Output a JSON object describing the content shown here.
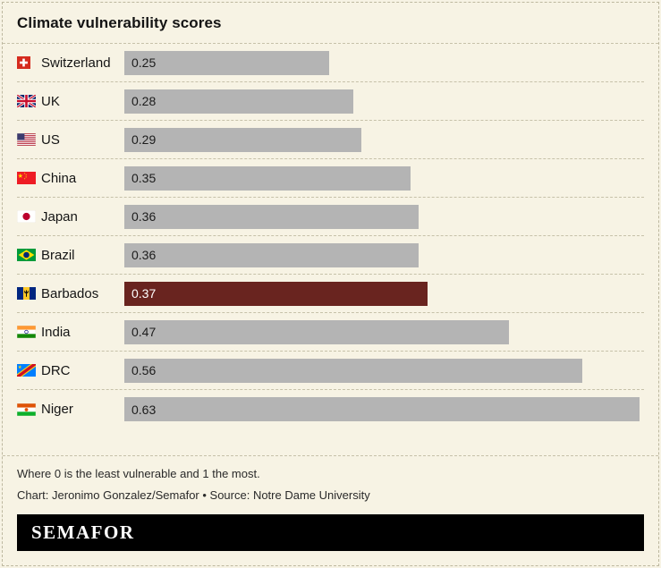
{
  "header": {
    "title": "Climate vulnerability scores"
  },
  "chart_data": {
    "type": "bar",
    "orientation": "horizontal",
    "title": "Climate vulnerability scores",
    "xlim": [
      0,
      0.635
    ],
    "grid": false,
    "legend": false,
    "bar_color": "#b4b4b4",
    "highlight_color": "#69241f",
    "bar_label_color": "#1c1c1c",
    "highlight_label_color": "#ffffff",
    "rows": [
      {
        "country": "Switzerland",
        "value": 0.25,
        "flag": "switzerland",
        "highlight": false
      },
      {
        "country": "UK",
        "value": 0.28,
        "flag": "uk",
        "highlight": false
      },
      {
        "country": "US",
        "value": 0.29,
        "flag": "us",
        "highlight": false
      },
      {
        "country": "China",
        "value": 0.35,
        "flag": "china",
        "highlight": false
      },
      {
        "country": "Japan",
        "value": 0.36,
        "flag": "japan",
        "highlight": false
      },
      {
        "country": "Brazil",
        "value": 0.36,
        "flag": "brazil",
        "highlight": false
      },
      {
        "country": "Barbados",
        "value": 0.37,
        "flag": "barbados",
        "highlight": true
      },
      {
        "country": "India",
        "value": 0.47,
        "flag": "india",
        "highlight": false
      },
      {
        "country": "DRC",
        "value": 0.56,
        "flag": "drc",
        "highlight": false
      },
      {
        "country": "Niger",
        "value": 0.63,
        "flag": "niger",
        "highlight": false
      }
    ]
  },
  "notes": {
    "scale_note": "Where 0 is the least vulnerable and 1 the most.",
    "credit": "Chart: Jeronimo Gonzalez/Semafor • Source: Notre Dame University"
  },
  "footer": {
    "brand": "SEMAFOR"
  }
}
